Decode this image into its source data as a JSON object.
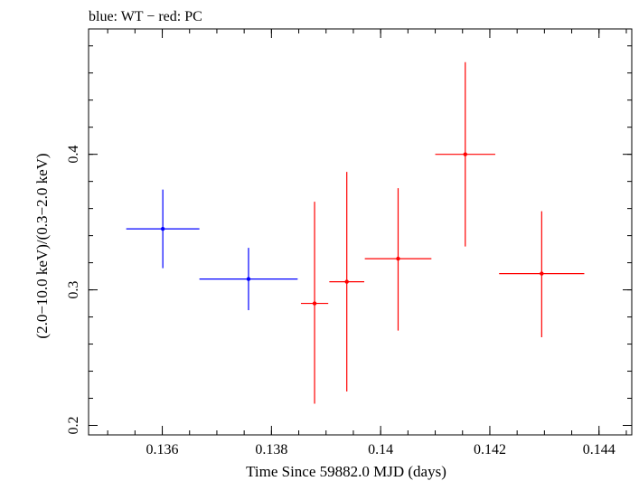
{
  "chart_data": {
    "type": "scatter",
    "title": "blue: WT − red: PC",
    "xlabel": "Time Since 59882.0 MJD (days)",
    "ylabel": "(2.0−10.0 keV)/(0.3−2.0 keV)",
    "xlim": [
      0.13465,
      0.1446
    ],
    "ylim": [
      0.193,
      0.4925
    ],
    "x_ticks": [
      {
        "value": 0.136,
        "label": "0.136"
      },
      {
        "value": 0.138,
        "label": "0.138"
      },
      {
        "value": 0.14,
        "label": "0.14"
      },
      {
        "value": 0.142,
        "label": "0.142"
      },
      {
        "value": 0.144,
        "label": "0.144"
      }
    ],
    "y_ticks": [
      {
        "value": 0.2,
        "label": "0.2"
      },
      {
        "value": 0.3,
        "label": "0.3"
      },
      {
        "value": 0.4,
        "label": "0.4"
      }
    ],
    "x_minor_step": 0.0005,
    "y_minor_step": 0.02,
    "series": [
      {
        "name": "WT",
        "color": "#0000ff",
        "points": [
          {
            "x": 0.13601,
            "xerr_lo": 0.00067,
            "xerr_hi": 0.00067,
            "y": 0.345,
            "y_lo": 0.316,
            "y_hi": 0.374
          },
          {
            "x": 0.13758,
            "xerr_lo": 0.0009,
            "xerr_hi": 0.0009,
            "y": 0.308,
            "y_lo": 0.285,
            "y_hi": 0.331
          }
        ]
      },
      {
        "name": "PC",
        "color": "#ff0000",
        "points": [
          {
            "x": 0.13879,
            "xerr_lo": 0.00025,
            "xerr_hi": 0.00025,
            "y": 0.29,
            "y_lo": 0.216,
            "y_hi": 0.365
          },
          {
            "x": 0.13938,
            "xerr_lo": 0.00032,
            "xerr_hi": 0.00032,
            "y": 0.306,
            "y_lo": 0.225,
            "y_hi": 0.387
          },
          {
            "x": 0.14032,
            "xerr_lo": 0.00061,
            "xerr_hi": 0.00061,
            "y": 0.323,
            "y_lo": 0.27,
            "y_hi": 0.375
          },
          {
            "x": 0.14155,
            "xerr_lo": 0.00055,
            "xerr_hi": 0.00055,
            "y": 0.4,
            "y_lo": 0.332,
            "y_hi": 0.468
          },
          {
            "x": 0.14295,
            "xerr_lo": 0.00078,
            "xerr_hi": 0.00078,
            "y": 0.312,
            "y_lo": 0.265,
            "y_hi": 0.358
          }
        ]
      }
    ]
  }
}
